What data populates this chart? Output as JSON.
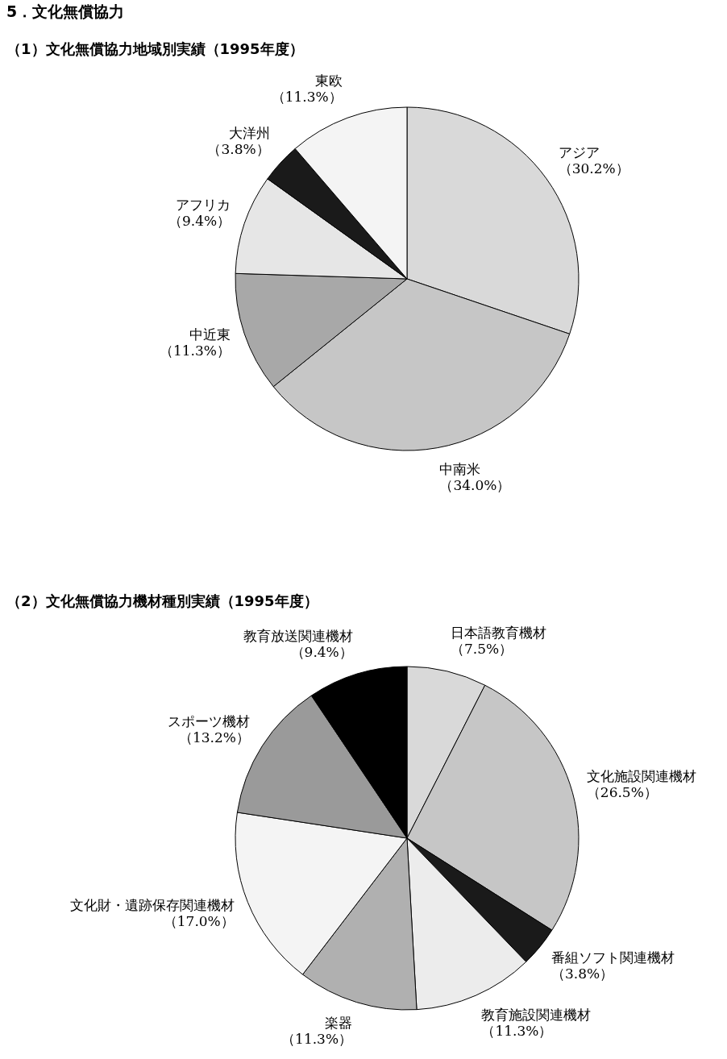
{
  "chart_data": [
    {
      "type": "pie",
      "title": "5．文化無償協力",
      "subtitle": "（1）文化無償協力地域別実績（1995年度）",
      "categories": [
        "アジア",
        "中南米",
        "中近東",
        "アフリカ",
        "大洋州",
        "東欧"
      ],
      "values": [
        30.2,
        34.0,
        11.3,
        9.4,
        3.8,
        11.3
      ],
      "value_labels": [
        "（30.2%）",
        "（34.0%）",
        "（11.3%）",
        "（9.4%）",
        "（3.8%）",
        "（11.3%）"
      ],
      "colors": [
        "#d9d9d9",
        "#c6c6c6",
        "#a8a8a8",
        "#e6e6e6",
        "#1a1a1a",
        "#f4f4f4"
      ]
    },
    {
      "type": "pie",
      "title": "（2）文化無償協力機材種別実績（1995年度）",
      "categories": [
        "日本語教育機材",
        "文化施設関連機材",
        "番組ソフト関連機材",
        "教育施設関連機材",
        "楽器",
        "文化財・遺跡保存関連機材",
        "スポーツ機材",
        "教育放送関連機材"
      ],
      "values": [
        7.5,
        26.5,
        3.8,
        11.3,
        11.3,
        17.0,
        13.2,
        9.4
      ],
      "value_labels": [
        "（7.5%）",
        "（26.5%）",
        "（3.8%）",
        "（11.3%）",
        "（11.3%）",
        "（17.0%）",
        "（13.2%）",
        "（9.4%）"
      ],
      "colors": [
        "#d9d9d9",
        "#c6c6c6",
        "#1a1a1a",
        "#ececec",
        "#b0b0b0",
        "#f4f4f4",
        "#9a9a9a",
        "#000000"
      ]
    }
  ]
}
